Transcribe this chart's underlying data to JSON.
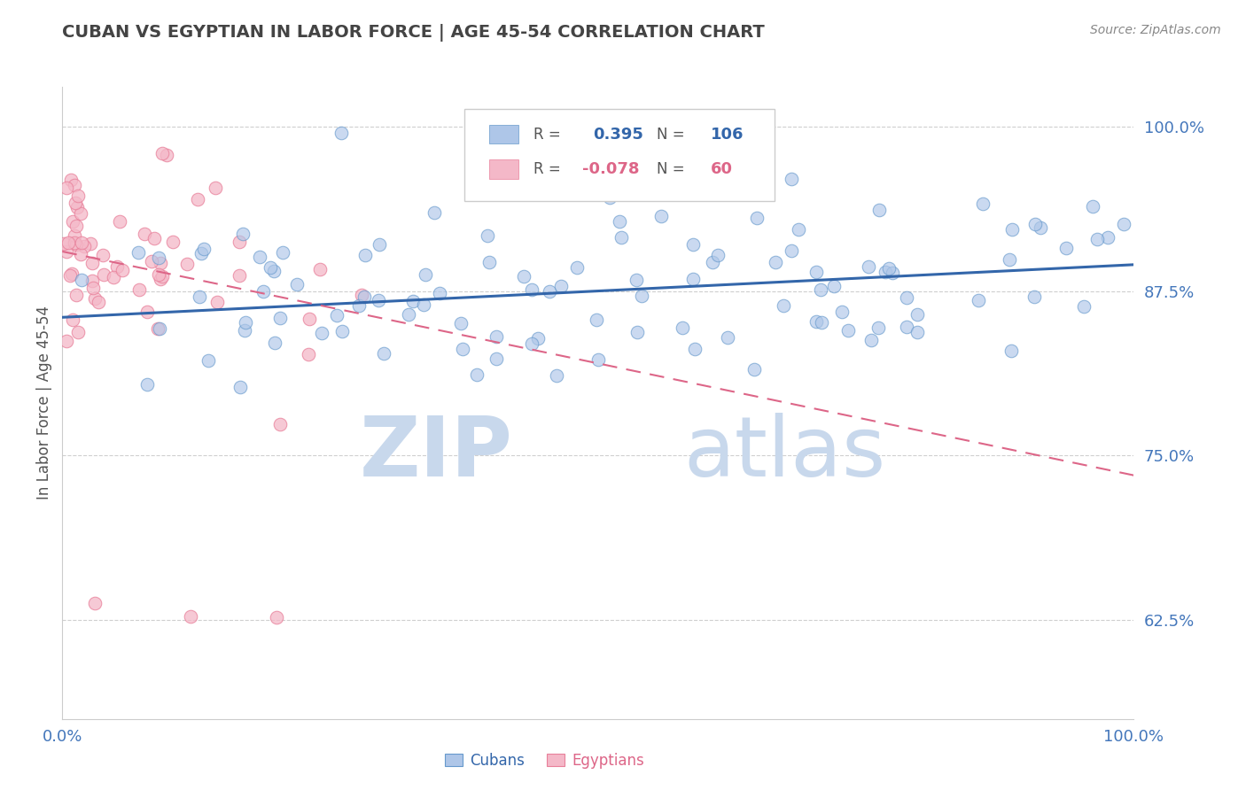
{
  "title": "CUBAN VS EGYPTIAN IN LABOR FORCE | AGE 45-54 CORRELATION CHART",
  "source": "Source: ZipAtlas.com",
  "ylabel": "In Labor Force | Age 45-54",
  "xlim": [
    0.0,
    1.0
  ],
  "ylim": [
    0.55,
    1.03
  ],
  "yticks": [
    0.625,
    0.75,
    0.875,
    1.0
  ],
  "ytick_labels": [
    "62.5%",
    "75.0%",
    "87.5%",
    "100.0%"
  ],
  "xticks": [
    0.0,
    1.0
  ],
  "xtick_labels": [
    "0.0%",
    "100.0%"
  ],
  "cuban_R": 0.395,
  "cuban_N": 106,
  "egyptian_R": -0.078,
  "egyptian_N": 60,
  "cuban_color": "#aec6e8",
  "cuban_edge_color": "#6699cc",
  "cuban_line_color": "#3366aa",
  "egyptian_color": "#f4b8c8",
  "egyptian_edge_color": "#e8809a",
  "egyptian_line_color": "#dd6688",
  "background_color": "#ffffff",
  "grid_color": "#bbbbbb",
  "watermark_zip_color": "#c8d8ec",
  "watermark_atlas_color": "#c8d8ec",
  "title_color": "#444444",
  "source_color": "#888888",
  "tick_color": "#4477bb",
  "legend_text_color": "#555555",
  "cuban_blue": "#3366aa",
  "egyptian_pink": "#dd6688",
  "cuban_line_start_y": 0.855,
  "cuban_line_end_y": 0.895,
  "egyptian_line_start_y": 0.905,
  "egyptian_line_end_y": 0.735
}
